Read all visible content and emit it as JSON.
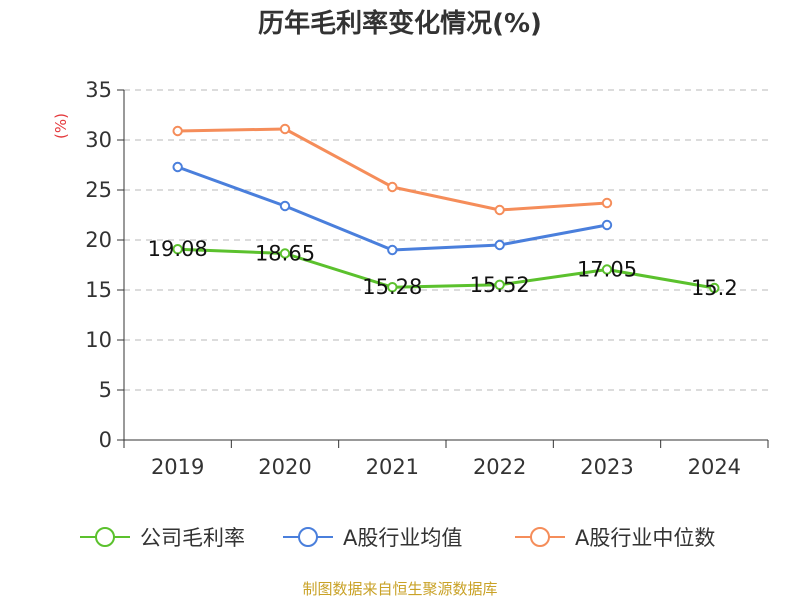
{
  "chart_data": {
    "type": "line",
    "title": "历年毛利率变化情况(%)",
    "ylabel": "(%)",
    "xlabel": "",
    "categories": [
      "2019",
      "2020",
      "2021",
      "2022",
      "2023",
      "2024"
    ],
    "ylim": [
      0,
      35
    ],
    "yticks": [
      0,
      5,
      10,
      15,
      20,
      25,
      30,
      35
    ],
    "grid": true,
    "legend_position": "bottom",
    "series": [
      {
        "name": "公司毛利率",
        "color": "#5bc12d",
        "values": [
          19.08,
          18.65,
          15.28,
          15.52,
          17.05,
          15.2
        ],
        "data_labels": [
          "19.08",
          "18.65",
          "15.28",
          "15.52",
          "17.05",
          "15.2"
        ]
      },
      {
        "name": "A股行业均值",
        "color": "#4a7fdc",
        "values": [
          27.3,
          23.4,
          19.0,
          19.5,
          21.5,
          null
        ]
      },
      {
        "name": "A股行业中位数",
        "color": "#f58d5a",
        "values": [
          30.9,
          31.1,
          25.3,
          23.0,
          23.7,
          null
        ]
      }
    ]
  },
  "footer": {
    "source": "制图数据来自恒生聚源数据库"
  }
}
